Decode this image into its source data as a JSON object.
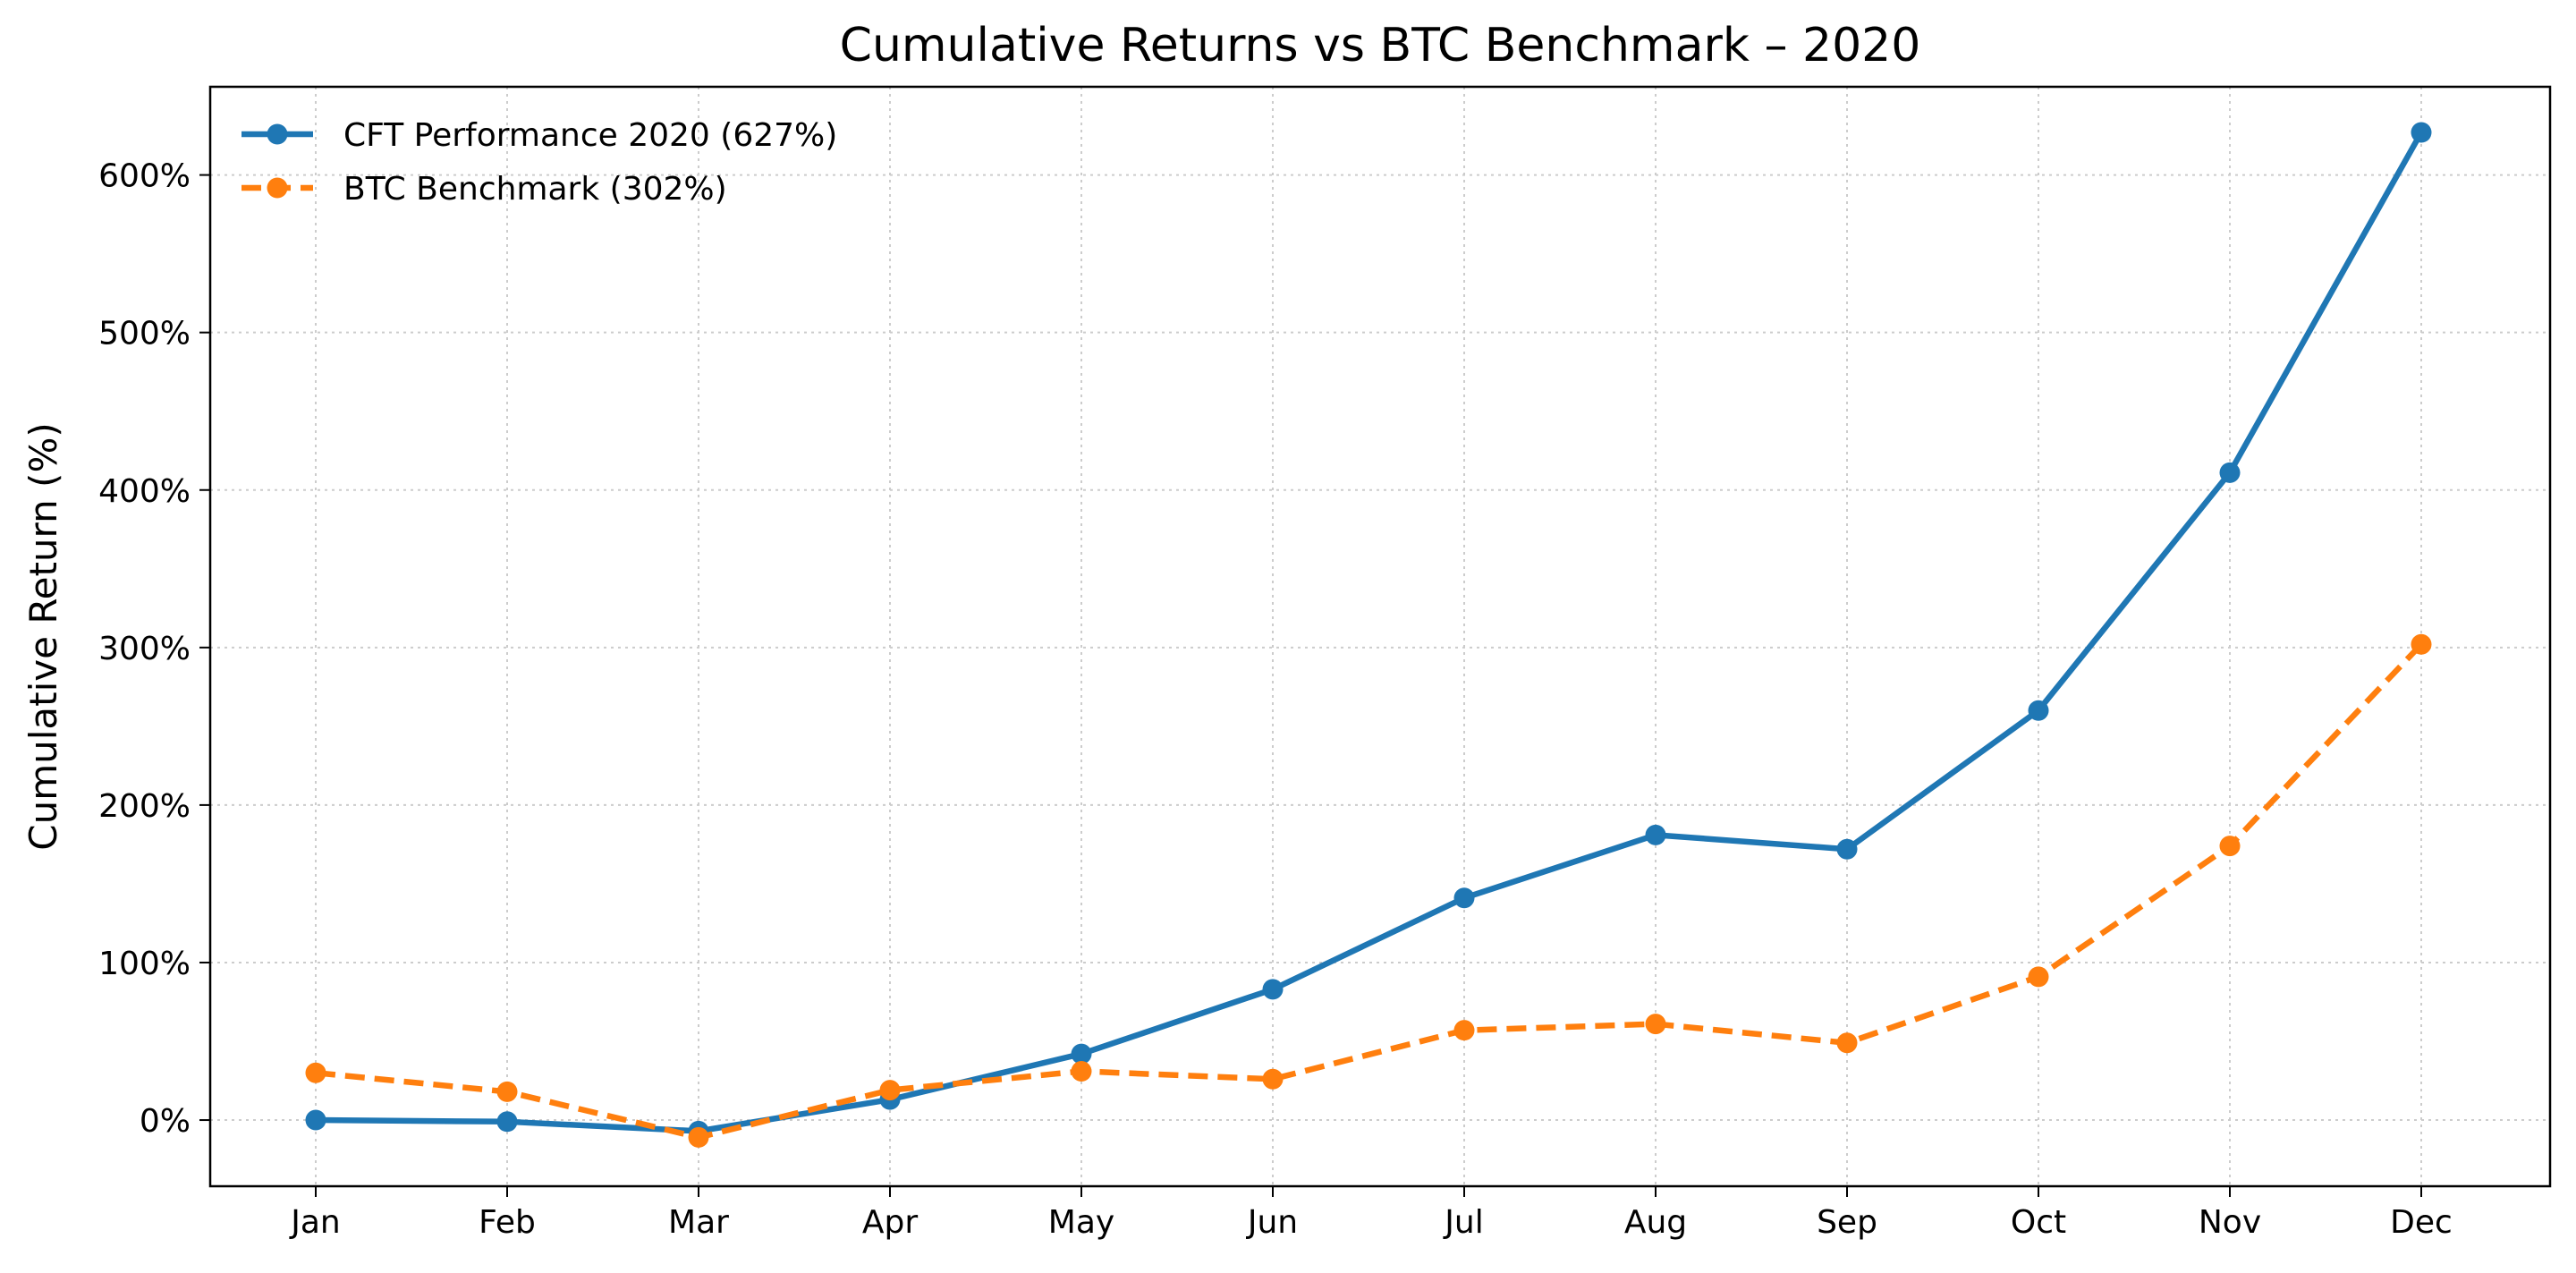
{
  "chart_data": {
    "type": "line",
    "title": "Cumulative Returns vs BTC Benchmark – 2020",
    "xlabel": "",
    "ylabel": "Cumulative Return (%)",
    "categories": [
      "Jan",
      "Feb",
      "Mar",
      "Apr",
      "May",
      "Jun",
      "Jul",
      "Aug",
      "Sep",
      "Oct",
      "Nov",
      "Dec"
    ],
    "ylim": [
      -42,
      656
    ],
    "yticks": [
      0,
      100,
      200,
      300,
      400,
      500,
      600
    ],
    "ytick_labels": [
      "0%",
      "100%",
      "200%",
      "300%",
      "400%",
      "500%",
      "600%"
    ],
    "grid": true,
    "legend_position": "top-left",
    "series": [
      {
        "name": "CFT Performance 2020 (627%)",
        "color": "#1f77b4",
        "style": "solid",
        "marker": "circle",
        "values": [
          0,
          -1,
          -7,
          13,
          42,
          83,
          141,
          181,
          172,
          260,
          411,
          627
        ]
      },
      {
        "name": "BTC Benchmark (302%)",
        "color": "#ff7f0e",
        "style": "dashed",
        "marker": "circle",
        "values": [
          30,
          18,
          -11,
          19,
          31,
          26,
          57,
          61,
          49,
          91,
          174,
          302
        ]
      }
    ]
  }
}
